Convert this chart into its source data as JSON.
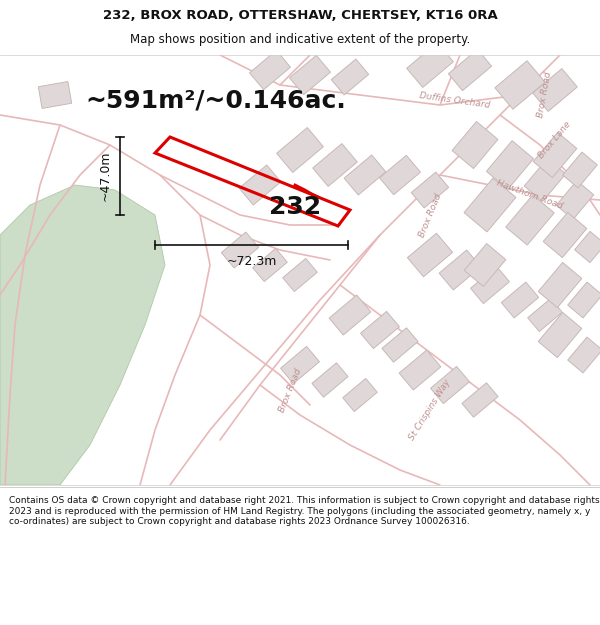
{
  "title_line1": "232, BROX ROAD, OTTERSHAW, CHERTSEY, KT16 0RA",
  "title_line2": "Map shows position and indicative extent of the property.",
  "area_text": "~591m²/~0.146ac.",
  "dim_width": "~72.3m",
  "dim_height": "~47.0m",
  "plot_number": "232",
  "footer_text": "Contains OS data © Crown copyright and database right 2021. This information is subject to Crown copyright and database rights 2023 and is reproduced with the permission of HM Land Registry. The polygons (including the associated geometry, namely x, y co-ordinates) are subject to Crown copyright and database rights 2023 Ordnance Survey 100026316.",
  "map_bg": "#f8f5f5",
  "road_color": "#e8b8b8",
  "building_color": "#e0d8d8",
  "building_outline": "#c8b8b8",
  "plot_outline": "#dd0000",
  "green_color": "#ccddc8",
  "dim_line_color": "#111111",
  "title_color": "#111111",
  "footer_color": "#111111",
  "white_bg": "#ffffff",
  "road_label_color": "#c09090",
  "title_fontsize": 9.5,
  "subtitle_fontsize": 8.5,
  "area_fontsize": 18,
  "plot_num_fontsize": 18,
  "dim_fontsize": 9,
  "footer_fontsize": 6.5,
  "road_label_fontsize": 6.5
}
